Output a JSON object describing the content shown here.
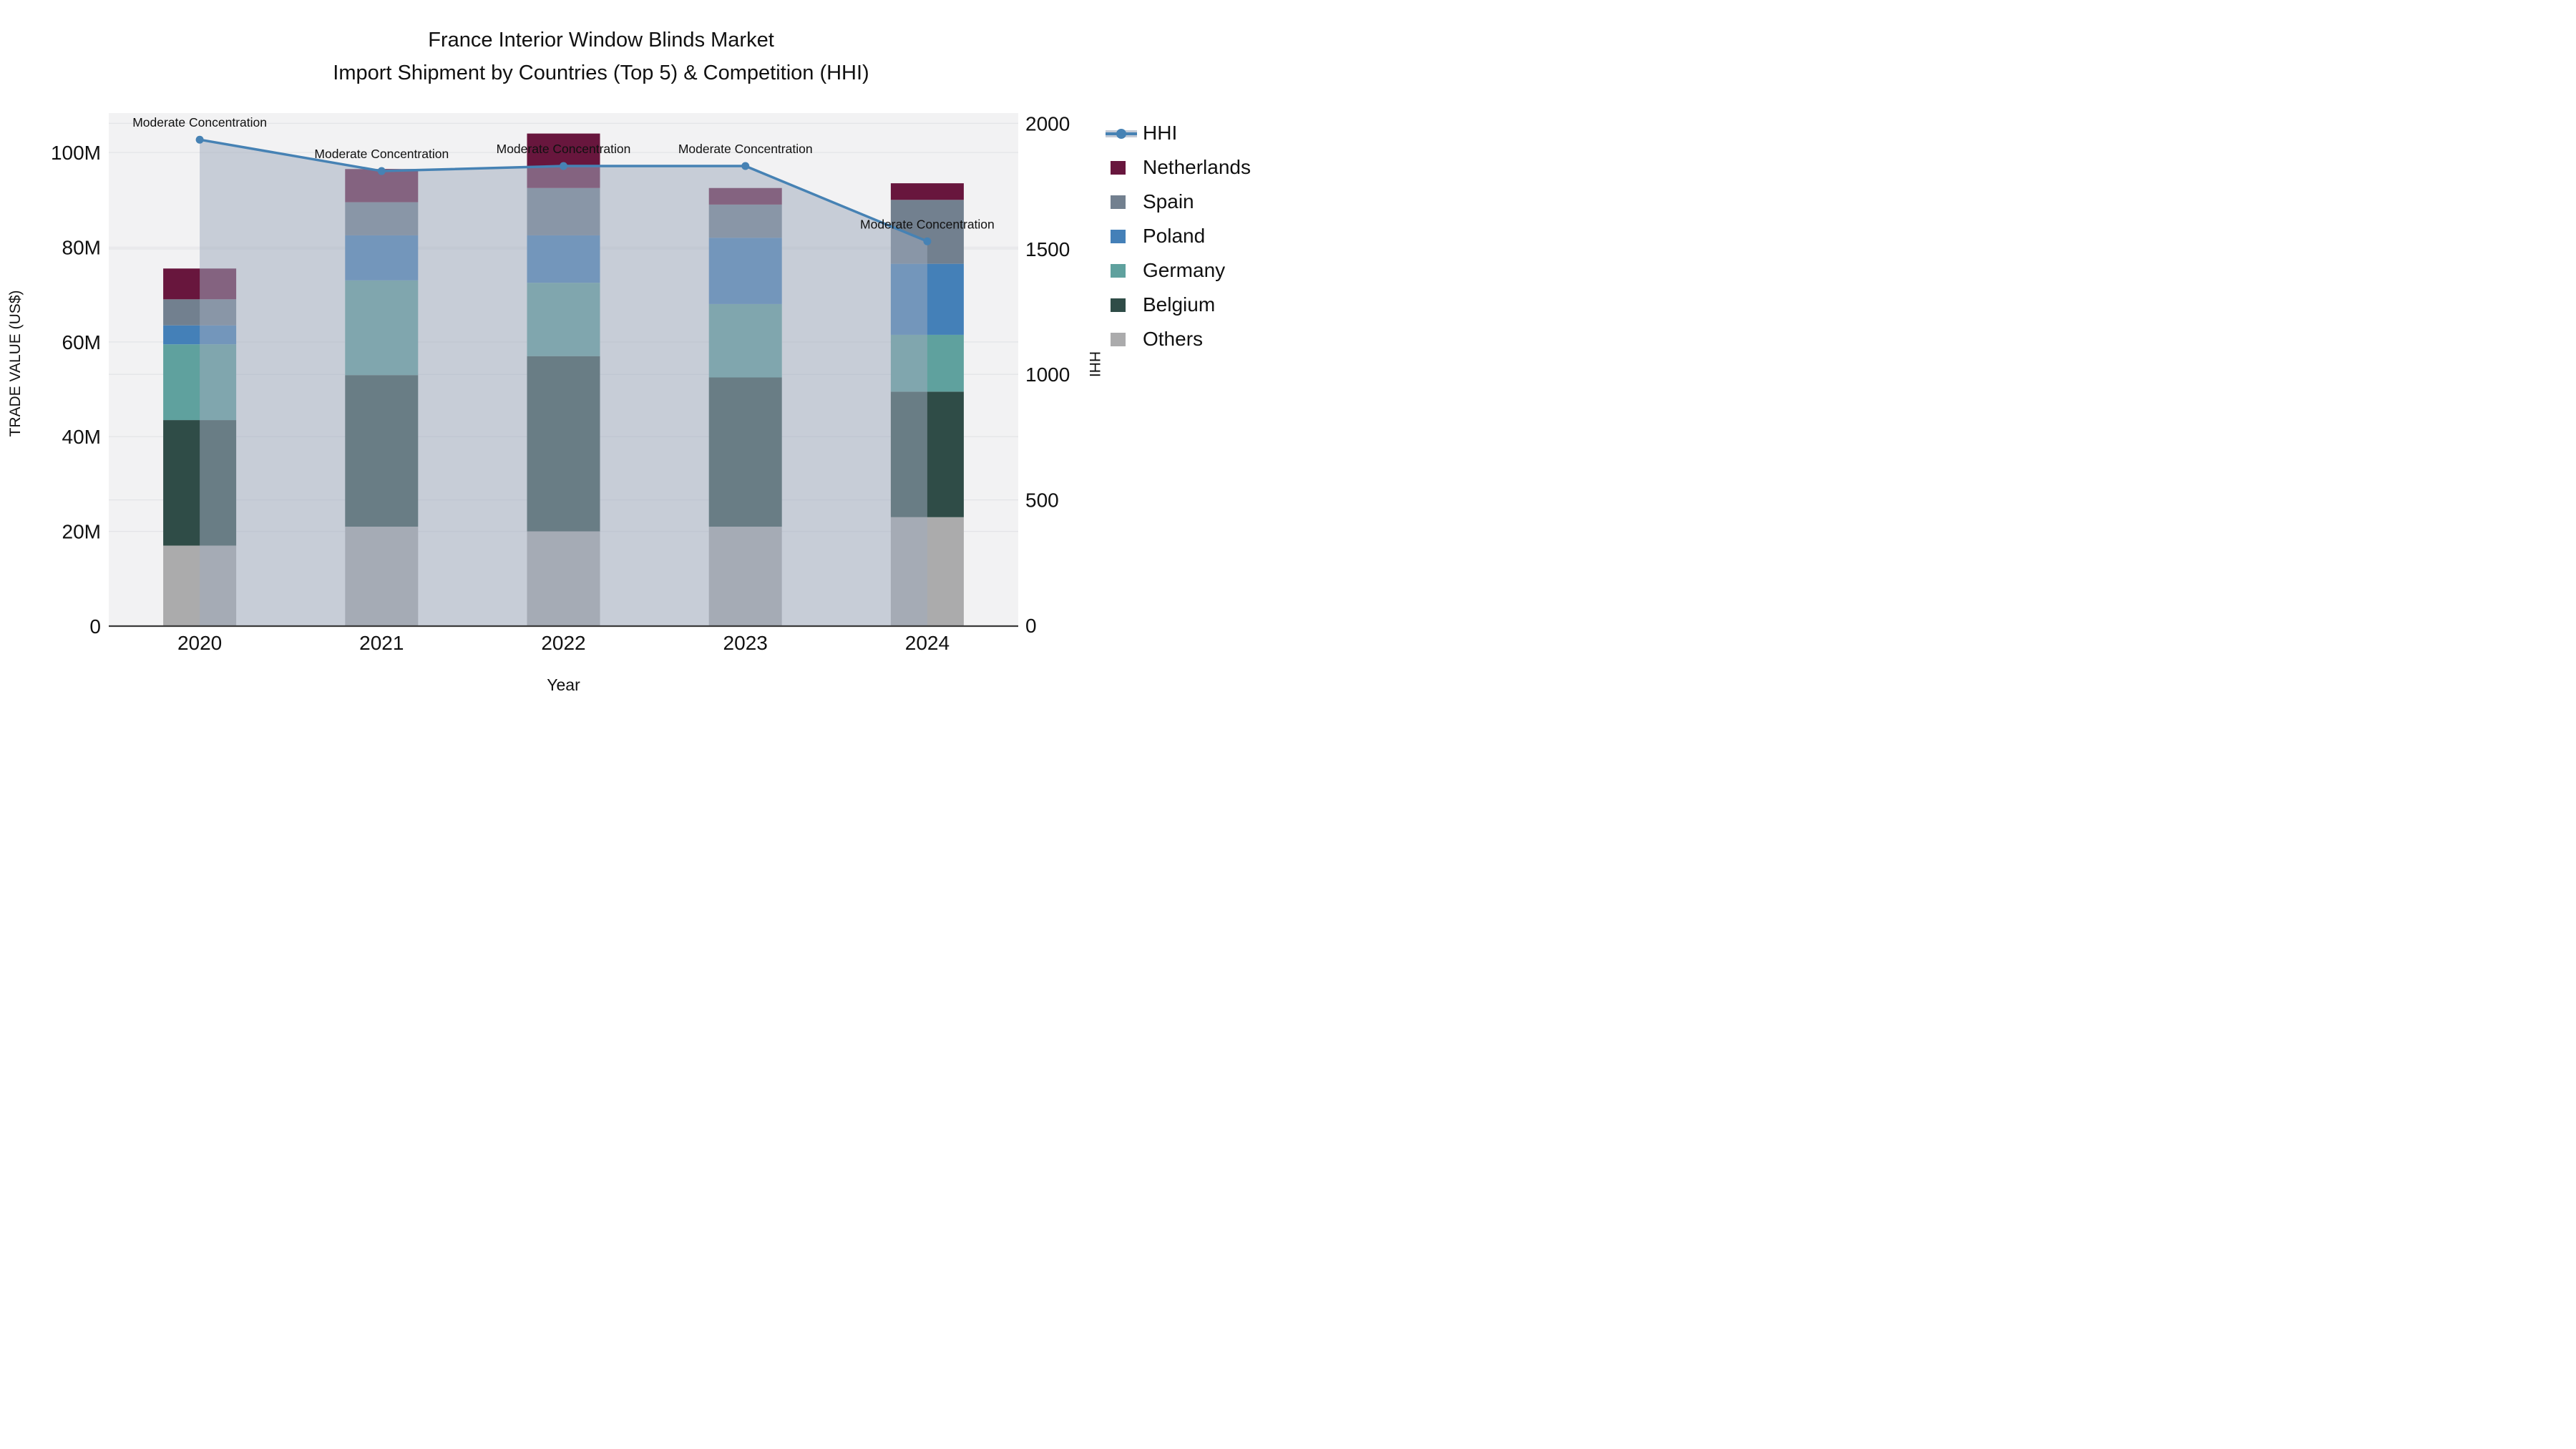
{
  "title": {
    "line1": "France Interior Window Blinds Market",
    "line2": "Import Shipment by Countries (Top 5) & Competition (HHI)"
  },
  "axes": {
    "x_title": "Year",
    "y_left_title": "TRADE VALUE (US$)",
    "y_right_title": "HHI",
    "x_ticks": [
      "2020",
      "2021",
      "2022",
      "2023",
      "2024"
    ],
    "y_left_ticks": [
      {
        "value": 0,
        "label": "0"
      },
      {
        "value": 20,
        "label": "20M"
      },
      {
        "value": 40,
        "label": "40M"
      },
      {
        "value": 60,
        "label": "60M"
      },
      {
        "value": 80,
        "label": "80M"
      },
      {
        "value": 100,
        "label": "100M"
      }
    ],
    "y_right_ticks": [
      {
        "value": 0,
        "label": "0"
      },
      {
        "value": 500,
        "label": "500"
      },
      {
        "value": 1000,
        "label": "1000"
      },
      {
        "value": 1500,
        "label": "1500"
      },
      {
        "value": 2000,
        "label": "2000"
      }
    ]
  },
  "legend": {
    "items": [
      {
        "label": "HHI",
        "type": "line",
        "color": "#4682B4"
      },
      {
        "label": "Netherlands",
        "type": "square",
        "color": "#68163D"
      },
      {
        "label": "Spain",
        "type": "square",
        "color": "#72808F"
      },
      {
        "label": "Poland",
        "type": "square",
        "color": "#4480B8"
      },
      {
        "label": "Germany",
        "type": "square",
        "color": "#5FA19E"
      },
      {
        "label": "Belgium",
        "type": "square",
        "color": "#2F4C47"
      },
      {
        "label": "Others",
        "type": "square",
        "color": "#ABABAC"
      }
    ]
  },
  "chart_data": {
    "type": "bar",
    "stacked": true,
    "units": "millions US$",
    "categories": [
      "2020",
      "2021",
      "2022",
      "2023",
      "2024"
    ],
    "series": [
      {
        "name": "Others",
        "color": "#ABABAC",
        "values": [
          17,
          21,
          20,
          21,
          23
        ]
      },
      {
        "name": "Belgium",
        "color": "#2F4C47",
        "values": [
          26.5,
          32,
          37,
          31.5,
          26.5
        ]
      },
      {
        "name": "Germany",
        "color": "#5FA19E",
        "values": [
          16,
          20,
          15.5,
          15.5,
          12
        ]
      },
      {
        "name": "Poland",
        "color": "#4480B8",
        "values": [
          4,
          9.5,
          10,
          14,
          15
        ]
      },
      {
        "name": "Spain",
        "color": "#72808F",
        "values": [
          5.5,
          7,
          10,
          7,
          13.5
        ]
      },
      {
        "name": "Netherlands",
        "color": "#68163D",
        "values": [
          6.5,
          7,
          11.5,
          3.5,
          3.5
        ]
      }
    ],
    "stack_totals": [
      75.5,
      96.5,
      104,
      92.5,
      93.5
    ],
    "line_series": {
      "name": "HHI",
      "axis": "right",
      "color": "#4682B4",
      "area_color": "rgba(160,170,190,0.52)",
      "values": [
        1935,
        1810,
        1830,
        1830,
        1530
      ]
    },
    "annotations": [
      {
        "x": "2020",
        "text": "Moderate Concentration"
      },
      {
        "x": "2021",
        "text": "Moderate Concentration"
      },
      {
        "x": "2022",
        "text": "Moderate Concentration"
      },
      {
        "x": "2023",
        "text": "Moderate Concentration"
      },
      {
        "x": "2024",
        "text": "Moderate Concentration"
      }
    ],
    "xlabel": "Year",
    "ylabel_left": "TRADE VALUE (US$)",
    "ylabel_right": "HHI",
    "ylim_left": [
      0,
      108
    ],
    "ylim_right": [
      0,
      2040
    ],
    "grid": true,
    "legend_position": "right"
  }
}
